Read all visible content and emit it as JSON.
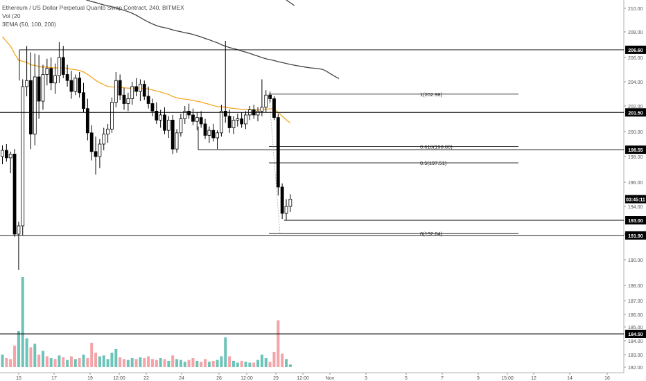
{
  "header": {
    "title": "Ethereum / US Dollar Perpetual Quanto Swap Contract, 240, BITMEX",
    "volume_label": "Vol (20",
    "ema_label": "3EMA (50, 100, 200)"
  },
  "colors": {
    "candle": "#000000",
    "ema_fast": "#f5a623",
    "ema_slow": "#424242",
    "volume_up": "#6cc4b8",
    "volume_down": "#f4a3a8",
    "level_line": "#000000",
    "price_tag_bg": "#000000",
    "price_tag_text": "#ffffff"
  },
  "chart_data": {
    "type": "candlestick",
    "price_axis": {
      "ticks": [
        "210.00",
        "208.00",
        "206.00",
        "204.00",
        "202.00",
        "200.00",
        "198.00",
        "196.00",
        "194.00",
        "192.00",
        "190.00",
        "188.00",
        "187.00",
        "186.00",
        "185.00",
        "184.00",
        "183.00",
        "182.00"
      ],
      "ylim": [
        181.8,
        211.0
      ]
    },
    "time_axis": {
      "ticks": [
        "15",
        "17",
        "19",
        "12:00",
        "22",
        "24",
        "26",
        "12:00",
        "29",
        "12:00",
        "Nov",
        "3",
        "5",
        "7",
        "9",
        "15:00",
        "12",
        "14",
        "16"
      ]
    },
    "horizontal_levels": [
      {
        "label": "206.60",
        "value": 206.6
      },
      {
        "label": "201.50",
        "value": 201.5
      },
      {
        "label": "198.55",
        "value": 198.55
      },
      {
        "label": "193.00",
        "value": 193.0
      },
      {
        "label": "191.90",
        "value": 191.9
      },
      {
        "label": "184.50",
        "value": 184.5
      }
    ],
    "current_price": {
      "label": "03:45:11",
      "value": 194.6
    },
    "fibonacci": {
      "high": 202.98,
      "low": 192.04,
      "levels": [
        {
          "label": "1(202.98)",
          "ratio": 1,
          "value": 202.98
        },
        {
          "label": "0.618(198.80)",
          "ratio": 0.618,
          "value": 198.8
        },
        {
          "label": "0.5(197.51)",
          "ratio": 0.5,
          "value": 197.51
        },
        {
          "label": "0(192.04)",
          "ratio": 0,
          "value": 192.04
        }
      ]
    },
    "candles": [
      {
        "o": 198.0,
        "h": 198.9,
        "l": 197.4,
        "c": 198.5
      },
      {
        "o": 198.5,
        "h": 199.0,
        "l": 197.6,
        "c": 197.9
      },
      {
        "o": 197.9,
        "h": 198.4,
        "l": 196.7,
        "c": 198.2
      },
      {
        "o": 198.2,
        "h": 198.6,
        "l": 191.8,
        "c": 192.0
      },
      {
        "o": 192.0,
        "h": 192.9,
        "l": 189.2,
        "c": 192.6
      },
      {
        "o": 192.6,
        "h": 204.2,
        "l": 191.9,
        "c": 203.6
      },
      {
        "o": 203.6,
        "h": 206.9,
        "l": 202.8,
        "c": 204.1
      },
      {
        "o": 204.1,
        "h": 206.4,
        "l": 198.6,
        "c": 199.8
      },
      {
        "o": 199.8,
        "h": 206.3,
        "l": 198.9,
        "c": 204.4
      },
      {
        "o": 204.4,
        "h": 206.2,
        "l": 201.0,
        "c": 202.4
      },
      {
        "o": 202.4,
        "h": 205.4,
        "l": 201.7,
        "c": 204.6
      },
      {
        "o": 204.6,
        "h": 205.9,
        "l": 203.7,
        "c": 205.1
      },
      {
        "o": 205.1,
        "h": 206.0,
        "l": 203.3,
        "c": 203.9
      },
      {
        "o": 203.9,
        "h": 205.5,
        "l": 203.0,
        "c": 204.5
      },
      {
        "o": 204.5,
        "h": 207.2,
        "l": 203.9,
        "c": 206.0
      },
      {
        "o": 206.0,
        "h": 206.9,
        "l": 204.3,
        "c": 204.6
      },
      {
        "o": 204.6,
        "h": 205.4,
        "l": 203.6,
        "c": 204.1
      },
      {
        "o": 204.1,
        "h": 204.9,
        "l": 202.6,
        "c": 203.2
      },
      {
        "o": 203.2,
        "h": 204.6,
        "l": 202.9,
        "c": 204.3
      },
      {
        "o": 204.3,
        "h": 204.8,
        "l": 202.7,
        "c": 203.1
      },
      {
        "o": 203.1,
        "h": 203.9,
        "l": 201.5,
        "c": 201.8
      },
      {
        "o": 201.8,
        "h": 202.6,
        "l": 199.3,
        "c": 199.9
      },
      {
        "o": 199.9,
        "h": 200.5,
        "l": 197.7,
        "c": 198.4
      },
      {
        "o": 198.4,
        "h": 199.6,
        "l": 196.6,
        "c": 198.0
      },
      {
        "o": 198.0,
        "h": 199.4,
        "l": 197.1,
        "c": 199.0
      },
      {
        "o": 199.0,
        "h": 200.3,
        "l": 198.5,
        "c": 199.8
      },
      {
        "o": 199.8,
        "h": 200.6,
        "l": 199.1,
        "c": 200.2
      },
      {
        "o": 200.2,
        "h": 202.7,
        "l": 199.9,
        "c": 202.3
      },
      {
        "o": 202.3,
        "h": 204.8,
        "l": 201.9,
        "c": 204.1
      },
      {
        "o": 204.1,
        "h": 204.6,
        "l": 202.5,
        "c": 202.9
      },
      {
        "o": 202.9,
        "h": 203.5,
        "l": 201.7,
        "c": 202.2
      },
      {
        "o": 202.2,
        "h": 203.1,
        "l": 201.6,
        "c": 202.6
      },
      {
        "o": 202.6,
        "h": 204.0,
        "l": 202.1,
        "c": 203.6
      },
      {
        "o": 203.6,
        "h": 204.3,
        "l": 202.8,
        "c": 203.2
      },
      {
        "o": 203.2,
        "h": 204.2,
        "l": 202.4,
        "c": 203.8
      },
      {
        "o": 203.8,
        "h": 204.1,
        "l": 202.5,
        "c": 202.8
      },
      {
        "o": 202.8,
        "h": 203.6,
        "l": 201.8,
        "c": 202.2
      },
      {
        "o": 202.2,
        "h": 202.6,
        "l": 201.2,
        "c": 201.6
      },
      {
        "o": 201.6,
        "h": 202.3,
        "l": 200.6,
        "c": 200.9
      },
      {
        "o": 200.9,
        "h": 201.7,
        "l": 200.3,
        "c": 201.3
      },
      {
        "o": 201.3,
        "h": 201.9,
        "l": 199.8,
        "c": 200.1
      },
      {
        "o": 200.1,
        "h": 201.2,
        "l": 199.5,
        "c": 200.9
      },
      {
        "o": 200.9,
        "h": 201.3,
        "l": 198.2,
        "c": 198.6
      },
      {
        "o": 198.6,
        "h": 200.2,
        "l": 198.3,
        "c": 199.9
      },
      {
        "o": 199.9,
        "h": 201.4,
        "l": 199.6,
        "c": 201.0
      },
      {
        "o": 201.0,
        "h": 202.0,
        "l": 200.6,
        "c": 201.6
      },
      {
        "o": 201.6,
        "h": 202.2,
        "l": 201.0,
        "c": 201.3
      },
      {
        "o": 201.3,
        "h": 201.8,
        "l": 200.5,
        "c": 200.8
      },
      {
        "o": 200.8,
        "h": 201.5,
        "l": 200.1,
        "c": 201.1
      },
      {
        "o": 201.1,
        "h": 201.6,
        "l": 200.3,
        "c": 200.6
      },
      {
        "o": 200.6,
        "h": 201.0,
        "l": 199.4,
        "c": 199.7
      },
      {
        "o": 199.7,
        "h": 200.4,
        "l": 199.1,
        "c": 200.1
      },
      {
        "o": 200.1,
        "h": 200.6,
        "l": 199.2,
        "c": 199.5
      },
      {
        "o": 199.5,
        "h": 200.1,
        "l": 198.6,
        "c": 199.9
      },
      {
        "o": 199.9,
        "h": 202.1,
        "l": 199.6,
        "c": 201.6
      },
      {
        "o": 201.6,
        "h": 207.3,
        "l": 200.7,
        "c": 201.2
      },
      {
        "o": 201.2,
        "h": 201.7,
        "l": 199.9,
        "c": 200.3
      },
      {
        "o": 200.3,
        "h": 201.2,
        "l": 199.8,
        "c": 200.9
      },
      {
        "o": 200.9,
        "h": 201.4,
        "l": 200.4,
        "c": 201.0
      },
      {
        "o": 201.0,
        "h": 201.5,
        "l": 200.3,
        "c": 200.6
      },
      {
        "o": 200.6,
        "h": 201.6,
        "l": 200.2,
        "c": 201.3
      },
      {
        "o": 201.3,
        "h": 202.0,
        "l": 200.9,
        "c": 201.7
      },
      {
        "o": 201.7,
        "h": 202.1,
        "l": 201.0,
        "c": 201.3
      },
      {
        "o": 201.3,
        "h": 201.9,
        "l": 200.8,
        "c": 201.6
      },
      {
        "o": 201.6,
        "h": 204.2,
        "l": 201.2,
        "c": 201.9
      },
      {
        "o": 201.9,
        "h": 203.3,
        "l": 201.5,
        "c": 202.9
      },
      {
        "o": 202.9,
        "h": 203.2,
        "l": 202.3,
        "c": 202.6
      },
      {
        "o": 202.6,
        "h": 202.8,
        "l": 200.9,
        "c": 201.1
      },
      {
        "o": 201.1,
        "h": 201.4,
        "l": 194.9,
        "c": 195.6
      },
      {
        "o": 195.6,
        "h": 195.9,
        "l": 193.1,
        "c": 193.5
      },
      {
        "o": 193.5,
        "h": 194.6,
        "l": 193.0,
        "c": 194.0
      },
      {
        "o": 194.0,
        "h": 195.0,
        "l": 193.6,
        "c": 194.6
      }
    ],
    "volume": {
      "ylim": [
        0,
        100
      ],
      "bars": [
        {
          "v": 14,
          "up": true
        },
        {
          "v": 10,
          "up": false
        },
        {
          "v": 9,
          "up": false
        },
        {
          "v": 24,
          "up": false
        },
        {
          "v": 40,
          "up": true
        },
        {
          "v": 100,
          "up": true
        },
        {
          "v": 32,
          "up": true
        },
        {
          "v": 22,
          "up": false
        },
        {
          "v": 26,
          "up": true
        },
        {
          "v": 14,
          "up": false
        },
        {
          "v": 18,
          "up": true
        },
        {
          "v": 12,
          "up": false
        },
        {
          "v": 10,
          "up": true
        },
        {
          "v": 9,
          "up": false
        },
        {
          "v": 13,
          "up": true
        },
        {
          "v": 11,
          "up": false
        },
        {
          "v": 8,
          "up": true
        },
        {
          "v": 12,
          "up": false
        },
        {
          "v": 9,
          "up": true
        },
        {
          "v": 10,
          "up": false
        },
        {
          "v": 14,
          "up": true
        },
        {
          "v": 10,
          "up": false
        },
        {
          "v": 27,
          "up": false
        },
        {
          "v": 16,
          "up": false
        },
        {
          "v": 12,
          "up": true
        },
        {
          "v": 13,
          "up": true
        },
        {
          "v": 9,
          "up": true
        },
        {
          "v": 16,
          "up": true
        },
        {
          "v": 20,
          "up": true
        },
        {
          "v": 11,
          "up": false
        },
        {
          "v": 9,
          "up": false
        },
        {
          "v": 8,
          "up": true
        },
        {
          "v": 10,
          "up": true
        },
        {
          "v": 9,
          "up": false
        },
        {
          "v": 11,
          "up": true
        },
        {
          "v": 10,
          "up": false
        },
        {
          "v": 12,
          "up": false
        },
        {
          "v": 9,
          "up": false
        },
        {
          "v": 8,
          "up": false
        },
        {
          "v": 10,
          "up": true
        },
        {
          "v": 9,
          "up": false
        },
        {
          "v": 7,
          "up": true
        },
        {
          "v": 13,
          "up": false
        },
        {
          "v": 9,
          "up": true
        },
        {
          "v": 8,
          "up": true
        },
        {
          "v": 6,
          "up": true
        },
        {
          "v": 8,
          "up": false
        },
        {
          "v": 10,
          "up": false
        },
        {
          "v": 7,
          "up": true
        },
        {
          "v": 6,
          "up": false
        },
        {
          "v": 9,
          "up": false
        },
        {
          "v": 6,
          "up": true
        },
        {
          "v": 7,
          "up": false
        },
        {
          "v": 8,
          "up": true
        },
        {
          "v": 12,
          "up": true
        },
        {
          "v": 33,
          "up": true
        },
        {
          "v": 12,
          "up": false
        },
        {
          "v": 7,
          "up": true
        },
        {
          "v": 5,
          "up": true
        },
        {
          "v": 7,
          "up": false
        },
        {
          "v": 6,
          "up": true
        },
        {
          "v": 5,
          "up": true
        },
        {
          "v": 5,
          "up": false
        },
        {
          "v": 8,
          "up": true
        },
        {
          "v": 14,
          "up": true
        },
        {
          "v": 10,
          "up": true
        },
        {
          "v": 6,
          "up": false
        },
        {
          "v": 17,
          "up": false
        },
        {
          "v": 52,
          "up": false
        },
        {
          "v": 15,
          "up": false
        },
        {
          "v": 9,
          "up": true
        },
        {
          "v": 3,
          "up": true
        }
      ]
    }
  }
}
